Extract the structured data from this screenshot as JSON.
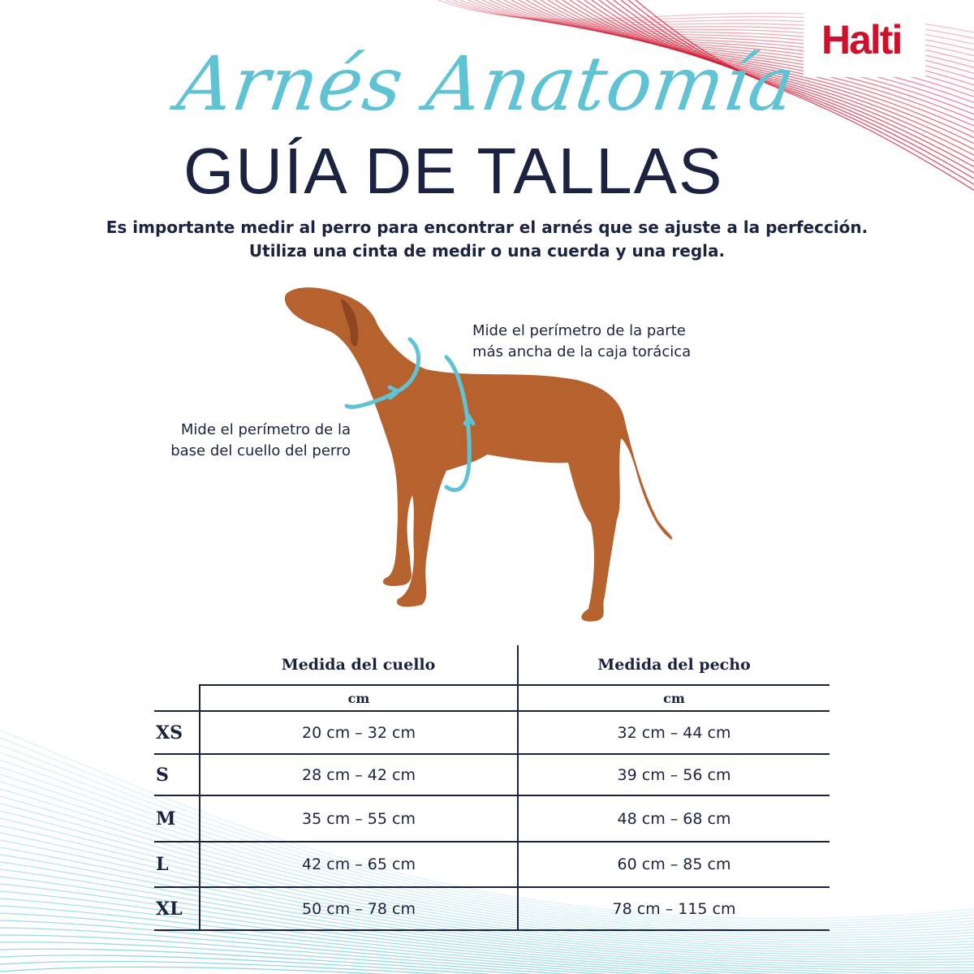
{
  "brand": {
    "logo": "Halti",
    "accent": "#d0102b",
    "teal": "#5fc3d3",
    "navy": "#1b2340"
  },
  "title": {
    "script": "Arnés Anatomía",
    "main": "GUÍA DE TALLAS"
  },
  "intro": {
    "line1": "Es importante medir al perro para encontrar el arnés que se ajuste a la perfección.",
    "line2": "Utiliza una cinta de medir o una cuerda y una regla."
  },
  "notes": {
    "chest": [
      "Mide el perímetro de la parte",
      "más ancha de la caja torácica"
    ],
    "neck": [
      "Mide el perímetro de la",
      "base del cuello del perro"
    ]
  },
  "table": {
    "headers": [
      "Medida del cuello",
      "Medida del pecho"
    ],
    "units": [
      "cm",
      "cm"
    ],
    "rows": [
      {
        "size": "XS",
        "neck": "20 cm – 32 cm",
        "chest": "32 cm – 44 cm"
      },
      {
        "size": "S",
        "neck": "28 cm – 42 cm",
        "chest": "39 cm – 56 cm"
      },
      {
        "size": "M",
        "neck": "35 cm – 55 cm",
        "chest": "48 cm – 68 cm"
      },
      {
        "size": "L",
        "neck": "42 cm – 65 cm",
        "chest": "60 cm – 85 cm"
      },
      {
        "size": "XL",
        "neck": "50 cm – 78 cm",
        "chest": "78 cm – 115 cm"
      }
    ]
  }
}
